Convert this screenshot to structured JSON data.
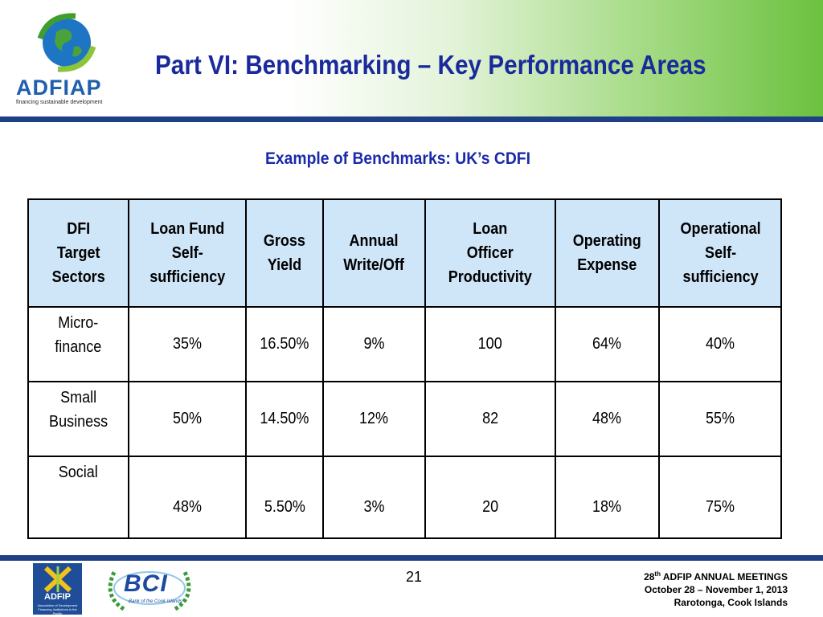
{
  "header": {
    "logo_name": "ADFIAP",
    "logo_tagline": "financing sustainable development",
    "title": "Part VI: Benchmarking – Key Performance Areas"
  },
  "subtitle": "Example of Benchmarks: UK’s CDFI",
  "table": {
    "headers": [
      [
        "DFI",
        "Target",
        "Sectors"
      ],
      [
        "Loan Fund",
        "Self-",
        "sufficiency"
      ],
      [
        "Gross",
        "Yield"
      ],
      [
        "Annual",
        "Write/Off"
      ],
      [
        "Loan",
        "Officer",
        "Productivity"
      ],
      [
        "Operating",
        "Expense"
      ],
      [
        "Operational",
        "Self-",
        "sufficiency"
      ]
    ],
    "rows": [
      {
        "sector": [
          "Micro-",
          "finance"
        ],
        "values": [
          "35%",
          "16.50%",
          "9%",
          "100",
          "64%",
          "40%"
        ]
      },
      {
        "sector": [
          "Small",
          "Business"
        ],
        "values": [
          "50%",
          "14.50%",
          "12%",
          "82",
          "48%",
          "55%"
        ]
      },
      {
        "sector": [
          "Social"
        ],
        "values": [
          "48%",
          "5.50%",
          "3%",
          "20",
          "18%",
          "75%"
        ]
      }
    ]
  },
  "footer": {
    "adfip_label": "ADFIP",
    "adfip_small": "Association of Development Financing Institutions in the Pacific",
    "bci_label": "BCI",
    "bci_sub": "Bank of the Cook Islands",
    "page_number": "21",
    "meeting_ordinal": "28",
    "meeting_suffix": "th",
    "meeting_name": " ADFIP ANNUAL MEETINGS",
    "meeting_dates": "October 28 – November 1, 2013",
    "meeting_place": "Rarotonga, Cook Islands"
  },
  "colors": {
    "title_blue": "#1a2a9c",
    "rule_navy": "#1f3f86",
    "header_cell": "#cfe5f8",
    "accent_green": "#6cc13f"
  }
}
